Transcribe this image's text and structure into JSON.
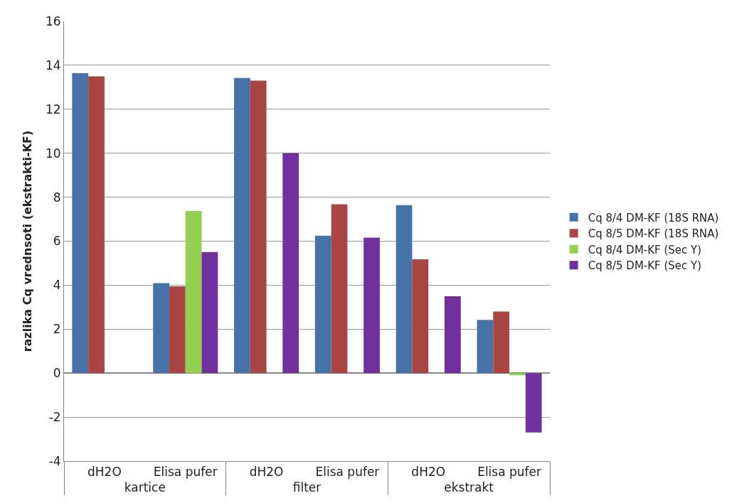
{
  "chart_data": {
    "type": "bar",
    "ylabel": "razlika Cq vrednsoti (ekstrakti-KF)",
    "categories": [
      "dH2O",
      "Elisa pufer",
      "dH2O",
      "Elisa pufer",
      "dH2O",
      "Elisa pufer"
    ],
    "annotations": [
      "kartice",
      "filter",
      "ekstrakt"
    ],
    "series": [
      {
        "name": "Cq 8/4 DM-KF (18S RNA)",
        "color": "#4672a8",
        "values": [
          13.64,
          4.09,
          13.42,
          6.25,
          7.64,
          2.42
        ]
      },
      {
        "name": "Cq 8/5 DM-KF (18S RNA)",
        "color": "#a94542",
        "values": [
          13.5,
          3.95,
          13.3,
          7.68,
          5.18,
          2.8
        ]
      },
      {
        "name": "Cq 8/4 DM-KF (Sec Y)",
        "color": "#92d050",
        "values": [
          null,
          7.37,
          null,
          null,
          null,
          -0.1
        ]
      },
      {
        "name": "Cq 8/5 DM-KF (Sec Y)",
        "color": "#7030a0",
        "values": [
          null,
          5.51,
          10.01,
          6.16,
          3.5,
          -2.7
        ]
      }
    ],
    "ylim": [
      -4,
      16
    ],
    "yticks": [
      -4,
      -2,
      0,
      2,
      4,
      6,
      8,
      10,
      12,
      14,
      16
    ],
    "grid": "y",
    "legend": "right"
  }
}
